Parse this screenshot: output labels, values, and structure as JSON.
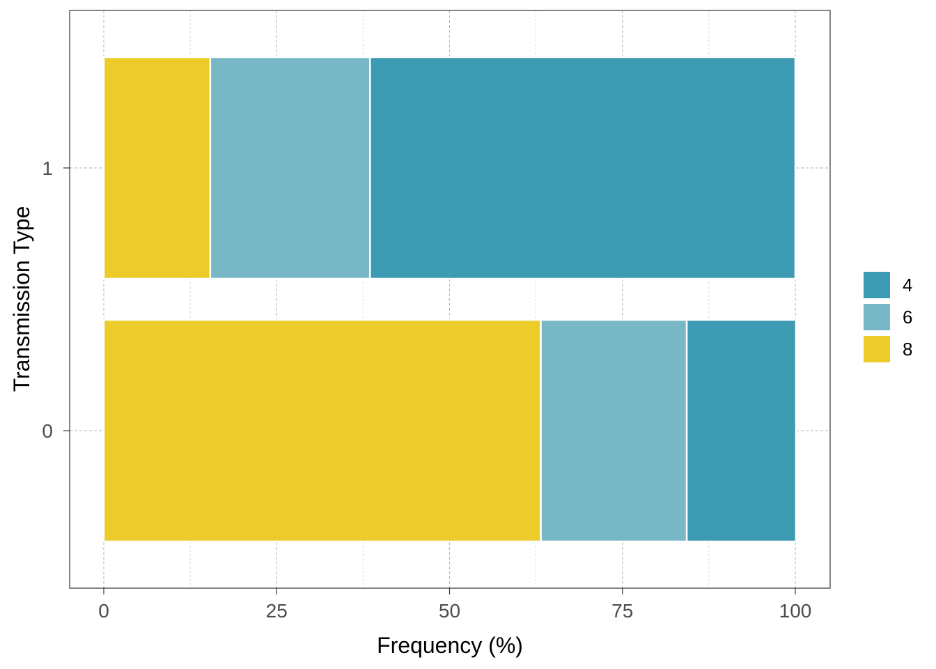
{
  "chart_data": {
    "type": "bar",
    "orientation": "horizontal",
    "stacked": true,
    "title": "",
    "xlabel": "Frequency (%)",
    "ylabel": "Transmission Type",
    "xlim": [
      0,
      100
    ],
    "x_ticks": [
      "0",
      "25",
      "50",
      "75",
      "100"
    ],
    "categories": [
      "0",
      "1"
    ],
    "stack_order_from_left": [
      "8",
      "6",
      "4"
    ],
    "series": [
      {
        "name": "4",
        "color": "#3C9AB2",
        "values": [
          15.8,
          61.5
        ]
      },
      {
        "name": "6",
        "color": "#78B7C5",
        "values": [
          21.1,
          23.1
        ]
      },
      {
        "name": "8",
        "color": "#EBCC2A",
        "values": [
          63.2,
          15.4
        ]
      }
    ],
    "legend": {
      "position": "right",
      "entries": [
        "4",
        "6",
        "8"
      ]
    },
    "grid": true
  }
}
